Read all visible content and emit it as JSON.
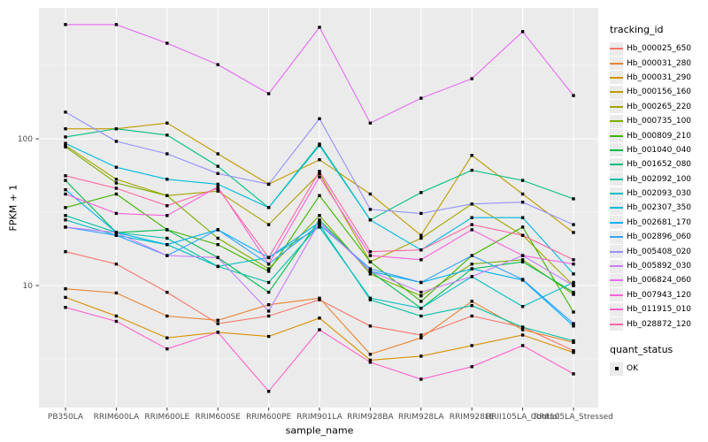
{
  "chart_data": {
    "type": "line",
    "title": "",
    "xlabel": "sample_name",
    "ylabel": "FPKM + 1",
    "y_scale": "log10",
    "ylim": [
      1.8,
      700
    ],
    "y_major_ticks": [
      100,
      10
    ],
    "y_tick_labels": [
      "100",
      "10"
    ],
    "y_minor_gridlines": [
      316.2,
      31.62,
      3.162
    ],
    "grid": true,
    "legend_position": "right",
    "marker": "black-square",
    "x": [
      "PB350LA",
      "RRIM600LA",
      "RRIM600LE",
      "RRIM600SE",
      "RRIM600PE",
      "RRIM901LA",
      "RRIM928BA",
      "RRIM928LA",
      "RRIM928LE",
      "RRII105LA_Control",
      "RRII105LA_Stressed"
    ],
    "series": [
      {
        "name": "Hb_000025_650",
        "color": "#F8766D",
        "values": [
          17,
          14,
          9,
          5.5,
          6.2,
          8,
          5.3,
          4.6,
          6.2,
          5.2,
          3.6
        ]
      },
      {
        "name": "Hb_000031_280",
        "color": "#EA8331",
        "values": [
          9.5,
          8.9,
          6.2,
          5.8,
          7.4,
          8.2,
          3.4,
          4.4,
          7.8,
          5.0,
          4.1
        ]
      },
      {
        "name": "Hb_000031_290",
        "color": "#D89000",
        "values": [
          8.3,
          6.2,
          4.4,
          4.8,
          4.5,
          6.0,
          3.1,
          3.3,
          3.9,
          4.6,
          3.5
        ]
      },
      {
        "name": "Hb_000156_160",
        "color": "#C09B00",
        "values": [
          117,
          117,
          128,
          79,
          49,
          72,
          42,
          22,
          77,
          42,
          23
        ]
      },
      {
        "name": "Hb_000265_220",
        "color": "#A3A500",
        "values": [
          90,
          53,
          41,
          44,
          26,
          58,
          14.5,
          21,
          36,
          22,
          10
        ]
      },
      {
        "name": "Hb_000735_100",
        "color": "#7CAE00",
        "values": [
          88,
          50,
          41,
          21,
          13,
          30,
          12,
          8.5,
          14,
          15,
          8.7
        ]
      },
      {
        "name": "Hb_000809_210",
        "color": "#39B600",
        "values": [
          34,
          42,
          24,
          19,
          12.5,
          41,
          14.5,
          7.8,
          16,
          25,
          6.6
        ]
      },
      {
        "name": "Hb_001040_040",
        "color": "#00BB4E",
        "values": [
          52,
          23,
          24,
          15.5,
          9,
          28,
          12.5,
          7.0,
          13,
          14.5,
          9.0
        ]
      },
      {
        "name": "Hb_001652_080",
        "color": "#00BF7D",
        "values": [
          103,
          117,
          106,
          65,
          34,
          92,
          28,
          43,
          61,
          52,
          39
        ]
      },
      {
        "name": "Hb_002092_100",
        "color": "#00C1A3",
        "values": [
          30,
          23,
          21,
          13.5,
          10.5,
          26,
          8,
          6.2,
          7.3,
          5.2,
          4.2
        ]
      },
      {
        "name": "Hb_002093_030",
        "color": "#00BFC4",
        "values": [
          28,
          22,
          19,
          13.5,
          15.5,
          25,
          8.2,
          7.0,
          11.5,
          7.2,
          10.5
        ]
      },
      {
        "name": "Hb_002307_350",
        "color": "#00BAE0",
        "values": [
          93,
          64,
          53,
          49,
          34,
          90,
          28,
          17.5,
          29,
          29,
          12
        ]
      },
      {
        "name": "Hb_002681_170",
        "color": "#00B0F6",
        "values": [
          45,
          23,
          19,
          24,
          15.5,
          27,
          12.5,
          10.5,
          13,
          10.9,
          5.3
        ]
      },
      {
        "name": "Hb_002896_060",
        "color": "#35A2FF",
        "values": [
          25,
          22,
          16,
          24,
          14,
          26,
          13,
          10.5,
          16,
          11,
          5.5
        ]
      },
      {
        "name": "Hb_005408_020",
        "color": "#9590FF",
        "values": [
          152,
          96,
          79,
          58,
          49,
          137,
          33,
          31,
          36,
          37,
          26
        ]
      },
      {
        "name": "Hb_005892_030",
        "color": "#C77CFF",
        "values": [
          25,
          23,
          16,
          15.5,
          6.7,
          27,
          12.5,
          9,
          11.5,
          16,
          10
        ]
      },
      {
        "name": "Hb_006824_060",
        "color": "#E76BF3",
        "values": [
          600,
          600,
          448,
          320,
          203,
          575,
          128,
          189,
          257,
          537,
          197
        ]
      },
      {
        "name": "Hb_007943_120",
        "color": "#FA62DB",
        "values": [
          42,
          31,
          30,
          47,
          14,
          55,
          16,
          15,
          24,
          16,
          14
        ]
      },
      {
        "name": "Hb_011915_010",
        "color": "#FF61CC",
        "values": [
          7.1,
          5.7,
          3.7,
          4.8,
          1.9,
          5.0,
          3.0,
          2.3,
          2.8,
          3.9,
          2.5
        ]
      },
      {
        "name": "Hb_028872_120",
        "color": "#FF67A4",
        "values": [
          56,
          46,
          35,
          46,
          15.5,
          60,
          17,
          17.5,
          26,
          22,
          15
        ]
      }
    ],
    "legend": {
      "tracking_title": "tracking_id",
      "quant_title": "quant_status",
      "quant_items": [
        {
          "label": "OK"
        }
      ]
    },
    "style": {
      "panel_bg": "#EBEBEB",
      "grid_color": "#FFFFFF",
      "tick_text_color": "#4D4D4D",
      "axis_title_color": "#000000",
      "marker_color": "#000000",
      "legend_key_bg": "#EBEBEB"
    }
  }
}
